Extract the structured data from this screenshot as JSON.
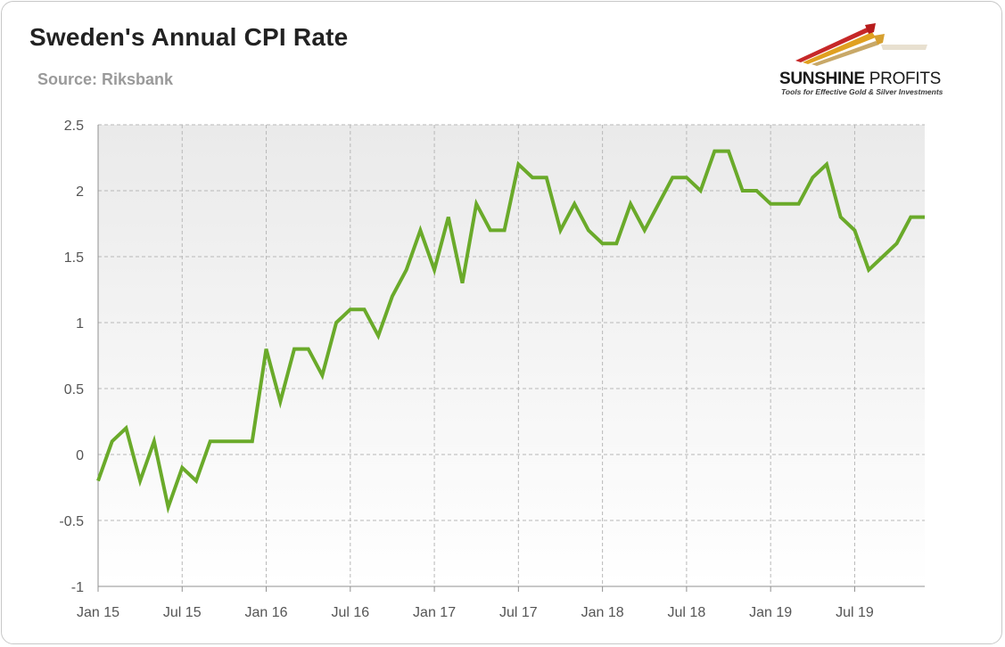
{
  "header": {
    "title": "Sweden's Annual CPI Rate",
    "source": "Source: Riksbank"
  },
  "logo": {
    "name_bold": "SUNSHINE",
    "name_light": " PROFITS",
    "tagline": "Tools for Effective Gold & Silver Investments"
  },
  "colors": {
    "line": "#6aaa2a",
    "grid": "#b8b8b8",
    "axis": "#909090",
    "plot_bg_top": "#eaeaea",
    "plot_bg_bottom": "#ffffff"
  },
  "chart_data": {
    "type": "line",
    "title": "Sweden's Annual CPI Rate",
    "xlabel": "",
    "ylabel": "",
    "ylim": [
      -1,
      2.5
    ],
    "yticks": [
      "2.5",
      "2",
      "1.5",
      "1",
      "0.5",
      "0",
      "-0.5",
      "-1"
    ],
    "ytick_values": [
      2.5,
      2,
      1.5,
      1,
      0.5,
      0,
      -0.5,
      -1
    ],
    "xticks": [
      "Jan 15",
      "Jul 15",
      "Jan 16",
      "Jul 16",
      "Jan 17",
      "Jul 17",
      "Jan 18",
      "Jul 18",
      "Jan 19",
      "Jul 19"
    ],
    "xtick_index": [
      0,
      6,
      12,
      18,
      24,
      30,
      36,
      42,
      48,
      54
    ],
    "grid": true,
    "legend": "none",
    "x_start": "2015-01",
    "x_end": "2019-12",
    "values": [
      -0.2,
      0.1,
      0.2,
      -0.2,
      0.1,
      -0.4,
      -0.1,
      -0.2,
      0.1,
      0.1,
      0.1,
      0.1,
      0.8,
      0.4,
      0.8,
      0.8,
      0.6,
      1.0,
      1.1,
      1.1,
      0.9,
      1.2,
      1.4,
      1.7,
      1.4,
      1.8,
      1.3,
      1.9,
      1.7,
      1.7,
      2.2,
      2.1,
      2.1,
      1.7,
      1.9,
      1.7,
      1.6,
      1.6,
      1.9,
      1.7,
      1.9,
      2.1,
      2.1,
      2.0,
      2.3,
      2.3,
      2.0,
      2.0,
      1.9,
      1.9,
      1.9,
      2.1,
      2.2,
      1.8,
      1.7,
      1.4,
      1.5,
      1.6,
      1.8,
      1.8
    ]
  }
}
